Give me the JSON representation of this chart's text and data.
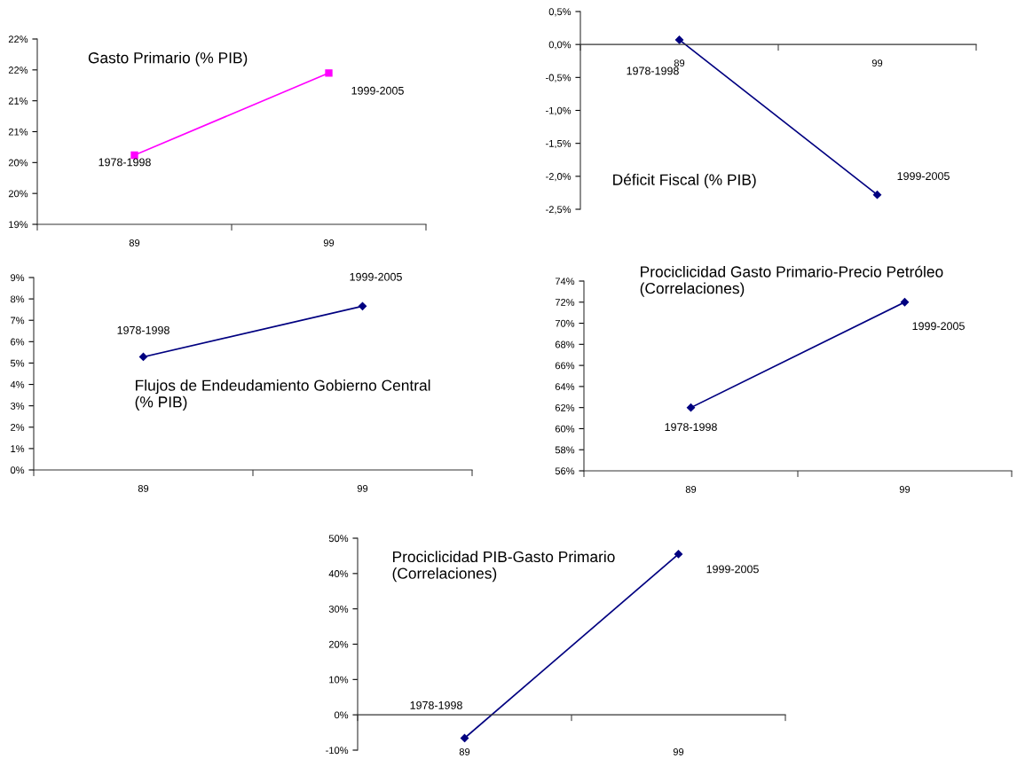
{
  "chart_data": [
    {
      "type": "line",
      "title": "Gasto Primario (% PIB)",
      "categories": [
        "89",
        "99"
      ],
      "series": [
        {
          "color": "#ff00ff",
          "values": [
            20.12,
            21.45
          ]
        }
      ],
      "marker": "square",
      "line_style": "solid",
      "ylim": [
        19,
        22
      ],
      "yticks": [
        {
          "value": 19,
          "label": "19%"
        },
        {
          "value": 19.5,
          "label": "20%"
        },
        {
          "value": 20,
          "label": "20%"
        },
        {
          "value": 20.5,
          "label": "21%"
        },
        {
          "value": 21,
          "label": "21%"
        },
        {
          "value": 21.5,
          "label": "22%"
        },
        {
          "value": 22,
          "label": "22%"
        }
      ],
      "annotations": [
        {
          "text": "1978-1998",
          "x": "89",
          "y": 20.12
        },
        {
          "text": "1999-2005",
          "x": "99",
          "y": 21.45
        }
      ]
    },
    {
      "type": "line",
      "title": "Déficit Fiscal (% PIB)",
      "categories": [
        "89",
        "99"
      ],
      "series": [
        {
          "color": "#000080",
          "values": [
            0.07,
            -2.28
          ]
        }
      ],
      "marker": "diamond",
      "line_style": "solid",
      "ylim": [
        -2.5,
        0.5
      ],
      "yticks": [
        {
          "value": -2.5,
          "label": "-2,5%"
        },
        {
          "value": -2.0,
          "label": "-2,0%"
        },
        {
          "value": -1.5,
          "label": "-1,5%"
        },
        {
          "value": -1.0,
          "label": "-1,0%"
        },
        {
          "value": -0.5,
          "label": "-0,5%"
        },
        {
          "value": 0,
          "label": "0,0%"
        },
        {
          "value": 0.5,
          "label": "0,5%"
        }
      ],
      "annotations": [
        {
          "text": "1978-1998",
          "x": "89",
          "y": 0.07
        },
        {
          "text": "1999-2005",
          "x": "99",
          "y": -2.28
        }
      ]
    },
    {
      "type": "line",
      "title": "Flujos de Endeudamiento Gobierno Central\n(% PIB)",
      "categories": [
        "89",
        "99"
      ],
      "series": [
        {
          "color": "#000080",
          "values": [
            5.29,
            7.66
          ]
        }
      ],
      "marker": "diamond",
      "line_style": "solid",
      "ylim": [
        0,
        9
      ],
      "yticks": [
        {
          "value": 0,
          "label": "0%"
        },
        {
          "value": 1,
          "label": "1%"
        },
        {
          "value": 2,
          "label": "2%"
        },
        {
          "value": 3,
          "label": "3%"
        },
        {
          "value": 4,
          "label": "4%"
        },
        {
          "value": 5,
          "label": "5%"
        },
        {
          "value": 6,
          "label": "6%"
        },
        {
          "value": 7,
          "label": "7%"
        },
        {
          "value": 8,
          "label": "8%"
        },
        {
          "value": 9,
          "label": "9%"
        }
      ],
      "annotations": [
        {
          "text": "1978-1998",
          "x": "89",
          "y": 5.29
        },
        {
          "text": "1999-2005",
          "x": "99",
          "y": 7.66
        }
      ]
    },
    {
      "type": "line",
      "title": "Prociclicidad Gasto Primario-Precio Petróleo\n(Correlaciones)",
      "categories": [
        "89",
        "99"
      ],
      "series": [
        {
          "color": "#000080",
          "values": [
            62,
            72
          ]
        }
      ],
      "marker": "diamond",
      "line_style": "solid",
      "ylim": [
        56,
        74
      ],
      "yticks": [
        {
          "value": 56,
          "label": "56%"
        },
        {
          "value": 58,
          "label": "58%"
        },
        {
          "value": 60,
          "label": "60%"
        },
        {
          "value": 62,
          "label": "62%"
        },
        {
          "value": 64,
          "label": "64%"
        },
        {
          "value": 66,
          "label": "66%"
        },
        {
          "value": 68,
          "label": "68%"
        },
        {
          "value": 70,
          "label": "70%"
        },
        {
          "value": 72,
          "label": "72%"
        },
        {
          "value": 74,
          "label": "74%"
        }
      ],
      "annotations": [
        {
          "text": "1978-1998",
          "x": "89",
          "y": 62
        },
        {
          "text": "1999-2005",
          "x": "99",
          "y": 72
        }
      ]
    },
    {
      "type": "line",
      "title": "Prociclicidad PIB-Gasto Primario\n(Correlaciones)",
      "categories": [
        "89",
        "99"
      ],
      "series": [
        {
          "color": "#000080",
          "values": [
            -6.6,
            45.5
          ]
        }
      ],
      "marker": "diamond",
      "line_style": "solid",
      "ylim": [
        -10,
        50
      ],
      "yticks": [
        {
          "value": -10,
          "label": "-10%"
        },
        {
          "value": 0,
          "label": "0%"
        },
        {
          "value": 10,
          "label": "10%"
        },
        {
          "value": 20,
          "label": "20%"
        },
        {
          "value": 30,
          "label": "30%"
        },
        {
          "value": 40,
          "label": "40%"
        },
        {
          "value": 50,
          "label": "50%"
        }
      ],
      "annotations": [
        {
          "text": "1978-1998",
          "x": "89",
          "y": -6.6
        },
        {
          "text": "1999-2005",
          "x": "99",
          "y": 45.5
        }
      ]
    }
  ]
}
